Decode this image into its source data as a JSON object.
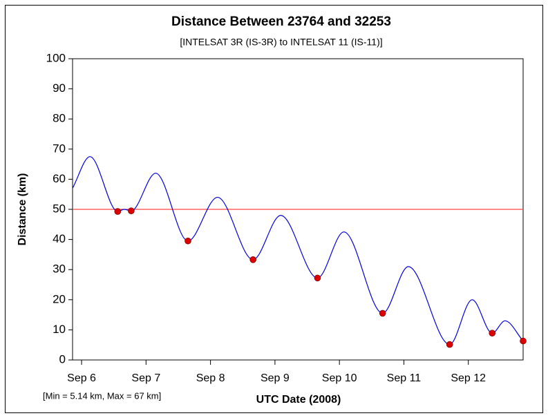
{
  "chart_data": {
    "type": "line",
    "title": "Distance Between 23764 and 32253",
    "subtitle": "[INTELSAT 3R (IS-3R) to INTELSAT 11 (IS-11)]",
    "xlabel": "UTC Date (2008)",
    "ylabel": "Distance (km)",
    "annotation": "[Min = 5.14 km, Max = 67 km]",
    "x": [
      -0.14,
      0.13,
      0.56,
      0.66,
      0.77,
      1.15,
      1.65,
      2.11,
      2.66,
      3.09,
      3.66,
      4.07,
      4.67,
      5.07,
      5.71,
      6.06,
      6.37,
      6.57,
      6.85
    ],
    "values": [
      57,
      67.5,
      49.3,
      50,
      49.5,
      62,
      39.5,
      54,
      33.3,
      48,
      27.2,
      42.5,
      15.5,
      31,
      5.14,
      20,
      8.9,
      13,
      6.3
    ],
    "color": "#0000dd",
    "markers": {
      "x": [
        0.56,
        0.77,
        1.65,
        2.66,
        3.66,
        4.67,
        5.71,
        6.37,
        6.85
      ],
      "values": [
        49.3,
        49.5,
        39.5,
        33.3,
        27.2,
        15.5,
        5.14,
        8.9,
        6.3
      ],
      "color": "#dd0000"
    },
    "threshold": {
      "value": 50,
      "color": "#ff4444"
    },
    "xlim": [
      -0.14,
      6.85
    ],
    "xticks": [
      {
        "value": 0,
        "label": "Sep 6"
      },
      {
        "value": 1,
        "label": "Sep 7"
      },
      {
        "value": 2,
        "label": "Sep 8"
      },
      {
        "value": 3,
        "label": "Sep 9"
      },
      {
        "value": 4,
        "label": "Sep 10"
      },
      {
        "value": 5,
        "label": "Sep 11"
      },
      {
        "value": 6,
        "label": "Sep 12"
      }
    ],
    "ylim": [
      0,
      100
    ],
    "yticks": [
      0,
      10,
      20,
      30,
      40,
      50,
      60,
      70,
      80,
      90,
      100
    ]
  }
}
